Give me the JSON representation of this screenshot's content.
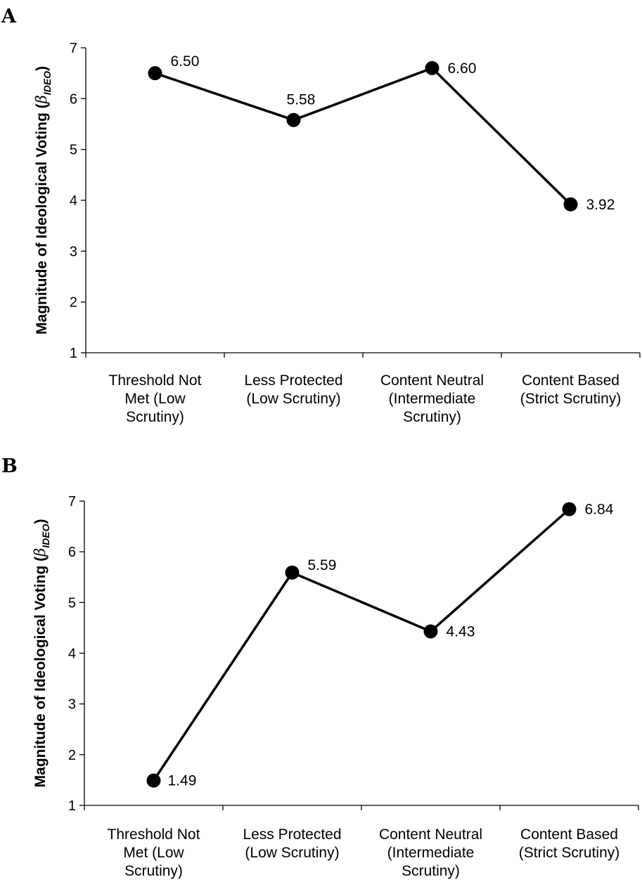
{
  "chart_data": [
    {
      "panel_label": "A",
      "type": "line",
      "ylabel": {
        "main": "Magnitude of Ideological Voting (",
        "symbol": "β",
        "subscript": "IDEO",
        "close": ")"
      },
      "ylim": [
        1,
        7
      ],
      "yticks": [
        "1",
        "2",
        "3",
        "4",
        "5",
        "6",
        "7"
      ],
      "categories": [
        [
          "Threshold Not",
          "Met (Low",
          "Scrutiny)"
        ],
        [
          "Less Protected",
          "(Low Scrutiny)"
        ],
        [
          "Content Neutral",
          "(Intermediate",
          "Scrutiny)"
        ],
        [
          "Content Based",
          "(Strict Scrutiny)"
        ]
      ],
      "values": [
        6.5,
        5.58,
        6.6,
        3.92
      ],
      "data_labels": [
        "6.50",
        "5.58",
        "6.60",
        "3.92"
      ],
      "legend": "none",
      "grid": false
    },
    {
      "panel_label": "B",
      "type": "line",
      "ylabel": {
        "main": "Magnitude of Ideological Voting (",
        "symbol": "β",
        "subscript": "IDEO",
        "close": ")"
      },
      "ylim": [
        1,
        7
      ],
      "yticks": [
        "1",
        "2",
        "3",
        "4",
        "5",
        "6",
        "7"
      ],
      "categories": [
        [
          "Threshold Not",
          "Met (Low",
          "Scrutiny)"
        ],
        [
          "Less Protected",
          "(Low Scrutiny)"
        ],
        [
          "Content Neutral",
          "(Intermediate",
          "Scrutiny)"
        ],
        [
          "Content Based",
          "(Strict Scrutiny)"
        ]
      ],
      "values": [
        1.49,
        5.59,
        4.43,
        6.84
      ],
      "data_labels": [
        "1.49",
        "5.59",
        "4.43",
        "6.84"
      ],
      "legend": "none",
      "grid": false
    }
  ]
}
